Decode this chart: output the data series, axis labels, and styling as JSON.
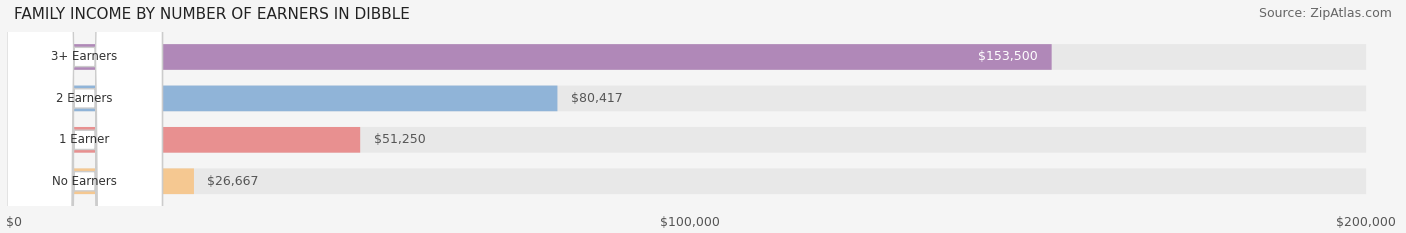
{
  "title": "FAMILY INCOME BY NUMBER OF EARNERS IN DIBBLE",
  "source": "Source: ZipAtlas.com",
  "categories": [
    "No Earners",
    "1 Earner",
    "2 Earners",
    "3+ Earners"
  ],
  "values": [
    26667,
    51250,
    80417,
    153500
  ],
  "labels": [
    "$26,667",
    "$51,250",
    "$80,417",
    "$153,500"
  ],
  "bar_colors": [
    "#f5c891",
    "#e89090",
    "#90b4d8",
    "#b088b8"
  ],
  "bar_bg_color": "#e8e8e8",
  "label_colors": [
    "#555555",
    "#555555",
    "#555555",
    "#ffffff"
  ],
  "xmax": 200000,
  "xticks": [
    0,
    100000,
    200000
  ],
  "xtick_labels": [
    "$0",
    "$100,000",
    "$200,000"
  ],
  "background_color": "#f5f5f5",
  "title_fontsize": 11,
  "source_fontsize": 9
}
